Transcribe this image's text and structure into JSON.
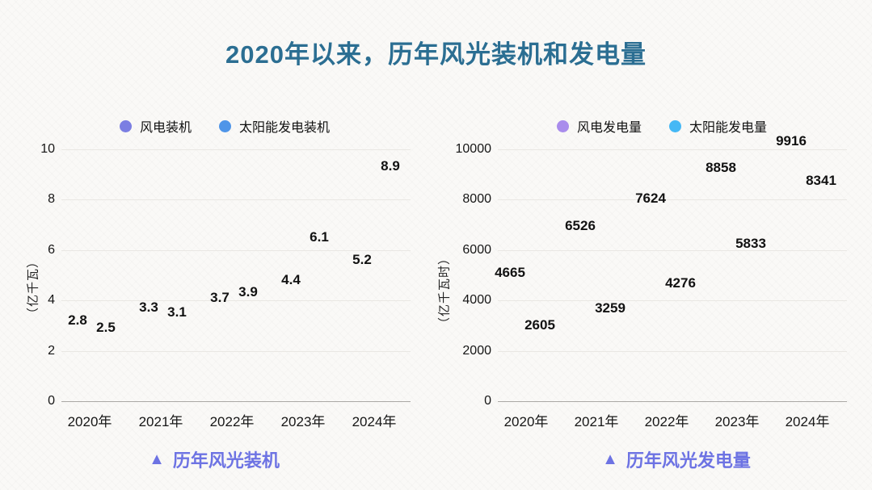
{
  "title": "2020年以来，历年风光装机和发电量",
  "colors": {
    "title": "#2b6e92",
    "caption": "#6d73e3",
    "wind_capacity": "#7b7ee2",
    "solar_capacity": "#4f95e8",
    "wind_generation": "#a98cec",
    "solar_generation": "#45b8f5"
  },
  "chart_data": [
    {
      "type": "scatter",
      "title": "历年风光装机",
      "caption_marker": "▲",
      "caption": "历年风光装机",
      "categories": [
        "2020年",
        "2021年",
        "2022年",
        "2023年",
        "2024年"
      ],
      "series": [
        {
          "name": "风电装机",
          "color": "#7b7ee2",
          "values": [
            2.8,
            3.3,
            3.7,
            4.4,
            5.2
          ]
        },
        {
          "name": "太阳能发电装机",
          "color": "#4f95e8",
          "values": [
            2.5,
            3.1,
            3.9,
            6.1,
            8.9
          ]
        }
      ],
      "xlabel": "",
      "ylabel": "（亿千瓦）",
      "ylim": [
        0,
        10
      ],
      "yticks": [
        10,
        8,
        6,
        4,
        2,
        0
      ],
      "grid": true,
      "legend_position": "top",
      "markers_visible": false,
      "data_labels_visible": true
    },
    {
      "type": "scatter",
      "title": "历年风光发电量",
      "caption_marker": "▲",
      "caption": "历年风光发电量",
      "categories": [
        "2020年",
        "2021年",
        "2022年",
        "2023年",
        "2024年"
      ],
      "series": [
        {
          "name": "风电发电量",
          "color": "#a98cec",
          "values": [
            4665,
            6526,
            7624,
            8858,
            9916
          ]
        },
        {
          "name": "太阳能发电量",
          "color": "#45b8f5",
          "values": [
            2605,
            3259,
            4276,
            5833,
            8341
          ]
        }
      ],
      "xlabel": "",
      "ylabel": "（亿千瓦时）",
      "ylim": [
        0,
        10000
      ],
      "yticks": [
        10000,
        8000,
        6000,
        4000,
        2000,
        0
      ],
      "grid": true,
      "legend_position": "top",
      "markers_visible": false,
      "data_labels_visible": true
    }
  ]
}
